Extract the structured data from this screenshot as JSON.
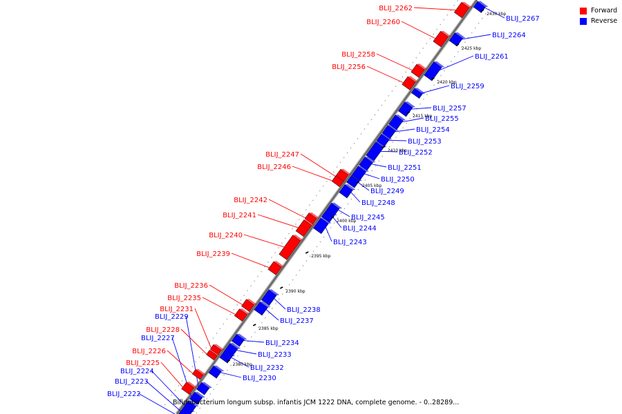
{
  "legend": {
    "forward": {
      "label": "Forward",
      "color": "#ff0000"
    },
    "reverse": {
      "label": "Reverse",
      "color": "#0000ff"
    }
  },
  "caption": "Bifidobacterium longum subsp. infantis JCM 1222 DNA, complete genome. - 0..28289...",
  "colors": {
    "forward": "#ff0000",
    "reverse": "#0000ff",
    "backbone": "#777777"
  },
  "kbp_markers": [
    "2380 kbp",
    "2385 kbp",
    "2390 kbp",
    "2395 kbp",
    "2400 kbp",
    "2405 kbp",
    "2410 kbp",
    "2415 kbp",
    "2420 kbp",
    "2425 kbp",
    "2430 kbp"
  ],
  "forward_genes": [
    "BLIJ_2262",
    "BLIJ_2260",
    "BLIJ_2258",
    "BLIJ_2256",
    "BLIJ_2247",
    "BLIJ_2246",
    "BLIJ_2242",
    "BLIJ_2241",
    "BLIJ_2240",
    "BLIJ_2239",
    "BLIJ_2236",
    "BLIJ_2235",
    "BLIJ_2231",
    "BLIJ_2228",
    "BLIJ_2226",
    "BLIJ_2225"
  ],
  "reverse_genes": [
    "BLIJ_2267",
    "BLIJ_2264",
    "BLIJ_2261",
    "BLIJ_2259",
    "BLIJ_2257",
    "BLIJ_2255",
    "BLIJ_2254",
    "BLIJ_2253",
    "BLIJ_2252",
    "BLIJ_2251",
    "BLIJ_2250",
    "BLIJ_2249",
    "BLIJ_2248",
    "BLIJ_2245",
    "BLIJ_2244",
    "BLIJ_2243",
    "BLIJ_2238",
    "BLIJ_2237",
    "BLIJ_2234",
    "BLIJ_2233",
    "BLIJ_2232",
    "BLIJ_2230",
    "BLIJ_2229",
    "BLIJ_2227",
    "BLIJ_2224",
    "BLIJ_2223",
    "BLIJ_2222"
  ]
}
